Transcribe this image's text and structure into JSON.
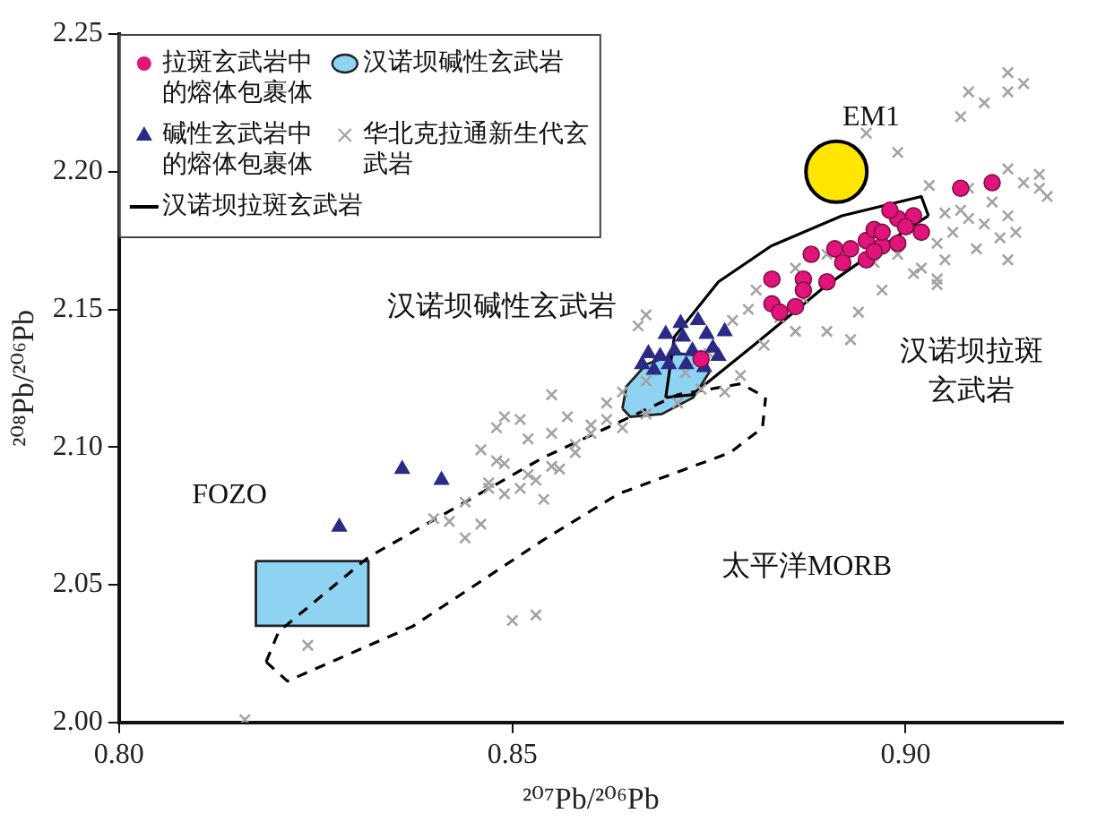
{
  "chart_data": {
    "type": "scatter",
    "xlabel": "²⁰⁷Pb/²⁰⁶Pb",
    "ylabel": "²⁰⁸Pb/²⁰⁶Pb",
    "xlim": [
      0.8,
      0.92
    ],
    "xticks": [
      {
        "value": 0.8,
        "label": "0.80"
      },
      0.85,
      {
        "value": 0.9,
        "label": "0.90"
      }
    ],
    "ylim": [
      2.0,
      2.25
    ],
    "yticks": [
      {
        "value": 2.0,
        "label": "2.00"
      },
      2.05,
      {
        "value": 2.1,
        "label": "2.10"
      },
      2.15,
      {
        "value": 2.2,
        "label": "2.20"
      },
      2.25
    ],
    "grid": false,
    "legend": "top left",
    "series": [
      {
        "name": "拉斑玄武岩中的熔体包裹体",
        "type": "scatter",
        "marker": "circle",
        "color": "#e2147c",
        "x": [
          0.907,
          0.911,
          0.888,
          0.891,
          0.892,
          0.883,
          0.887,
          0.89,
          0.895,
          0.896,
          0.899,
          0.901,
          0.902,
          0.897,
          0.899,
          0.895,
          0.897,
          0.9,
          0.893,
          0.896,
          0.887,
          0.883,
          0.884,
          0.886,
          0.874,
          0.898
        ],
        "values": [
          2.194,
          2.196,
          2.17,
          2.172,
          2.167,
          2.161,
          2.161,
          2.16,
          2.175,
          2.179,
          2.183,
          2.184,
          2.178,
          2.173,
          2.174,
          2.168,
          2.178,
          2.18,
          2.172,
          2.171,
          2.157,
          2.152,
          2.149,
          2.151,
          2.132,
          2.186
        ]
      },
      {
        "name": "汉诺坝碱性玄武岩",
        "type": "area",
        "color": "#8ed4f2",
        "x": [
          0.864,
          0.8645,
          0.867,
          0.871,
          0.8745,
          0.875,
          0.873,
          0.869,
          0.865
        ],
        "values": [
          2.114,
          2.122,
          2.13,
          2.134,
          2.133,
          2.127,
          2.118,
          2.112,
          2.111
        ]
      },
      {
        "name": "碱性玄武岩中的熔体包裹体",
        "type": "scatter",
        "marker": "triangle",
        "color": "#2b2b86",
        "x": [
          0.8714,
          0.8736,
          0.8695,
          0.8717,
          0.8747,
          0.877,
          0.8673,
          0.8688,
          0.8706,
          0.8729,
          0.8755,
          0.8665,
          0.8699,
          0.8721,
          0.8744,
          0.868,
          0.8762,
          0.828,
          0.836,
          0.841
        ],
        "values": [
          2.145,
          2.146,
          2.141,
          2.14,
          2.141,
          2.142,
          2.134,
          2.133,
          2.135,
          2.135,
          2.136,
          2.13,
          2.13,
          2.13,
          2.129,
          2.128,
          2.133,
          2.071,
          2.092,
          2.088
        ]
      },
      {
        "name": "华北克拉通新生代玄武岩",
        "type": "scatter",
        "marker": "cross",
        "color": "#a3a3a3",
        "x": [
          0.816,
          0.824,
          0.851,
          0.852,
          0.848,
          0.847,
          0.844,
          0.84,
          0.842,
          0.844,
          0.846,
          0.85,
          0.853,
          0.913,
          0.913,
          0.908,
          0.91,
          0.907,
          0.895,
          0.899,
          0.913,
          0.915,
          0.917,
          0.918,
          0.908,
          0.903,
          0.905,
          0.908,
          0.91,
          0.913,
          0.914,
          0.912,
          0.906,
          0.904,
          0.913,
          0.909,
          0.905,
          0.904,
          0.902,
          0.89,
          0.894,
          0.897,
          0.901,
          0.886,
          0.882,
          0.879,
          0.877,
          0.871,
          0.867,
          0.864,
          0.86,
          0.858,
          0.855,
          0.853,
          0.851,
          0.849,
          0.847,
          0.849,
          0.854,
          0.857,
          0.862,
          0.864,
          0.867,
          0.866,
          0.878,
          0.88,
          0.881,
          0.886,
          0.89,
          0.893,
          0.904,
          0.855,
          0.849,
          0.848,
          0.855,
          0.86,
          0.867,
          0.858,
          0.862,
          0.872,
          0.874,
          0.875,
          0.884,
          0.887,
          0.896,
          0.899,
          0.907,
          0.911,
          0.917,
          0.915,
          0.856,
          0.852,
          0.846
        ],
        "values": [
          2.001,
          2.028,
          2.11,
          2.103,
          2.095,
          2.085,
          2.08,
          2.074,
          2.073,
          2.067,
          2.072,
          2.037,
          2.039,
          2.236,
          2.229,
          2.229,
          2.225,
          2.22,
          2.214,
          2.207,
          2.201,
          2.196,
          2.194,
          2.191,
          2.194,
          2.195,
          2.185,
          2.183,
          2.181,
          2.184,
          2.178,
          2.176,
          2.178,
          2.174,
          2.168,
          2.172,
          2.168,
          2.159,
          2.165,
          2.142,
          2.149,
          2.157,
          2.163,
          2.142,
          2.137,
          2.126,
          2.12,
          2.116,
          2.112,
          2.107,
          2.105,
          2.098,
          2.093,
          2.088,
          2.085,
          2.094,
          2.087,
          2.083,
          2.081,
          2.111,
          2.116,
          2.12,
          2.124,
          2.144,
          2.146,
          2.15,
          2.157,
          2.165,
          2.17,
          2.139,
          2.161,
          2.119,
          2.111,
          2.107,
          2.105,
          2.108,
          2.148,
          2.101,
          2.11,
          2.127,
          2.121,
          2.134,
          2.147,
          2.154,
          2.167,
          2.17,
          2.186,
          2.189,
          2.199,
          2.232,
          2.092,
          2.09,
          2.099
        ]
      },
      {
        "name": "汉诺坝拉斑玄武岩",
        "type": "line",
        "color": "#000000",
        "x": [
          0.8695,
          0.8706,
          0.8762,
          0.8829,
          0.8919,
          0.902,
          0.9029
        ],
        "values": [
          2.118,
          2.14,
          2.16,
          2.173,
          2.184,
          2.191,
          2.184
        ]
      },
      {
        "type": "line",
        "color": "#000000",
        "x": [
          0.8695,
          0.8729,
          0.8807,
          0.8896,
          0.8986,
          0.9029
        ],
        "values": [
          2.118,
          2.119,
          2.137,
          2.158,
          2.176,
          2.184
        ]
      },
      {
        "type": "line",
        "line_style": "dashed",
        "color": "#000000",
        "x": [
          0.8187,
          0.8214,
          0.8374,
          0.8538,
          0.8635,
          0.8777,
          0.8818,
          0.8822
        ],
        "values": [
          2.022,
          2.015,
          2.035,
          2.066,
          2.083,
          2.098,
          2.107,
          2.118
        ]
      },
      {
        "type": "line",
        "line_style": "dashed",
        "color": "#000000",
        "x": [
          0.8187,
          0.8203,
          0.8317,
          0.8538,
          0.871,
          0.8791,
          0.8822
        ],
        "values": [
          2.022,
          2.033,
          2.06,
          2.096,
          2.119,
          2.123,
          2.118
        ]
      },
      {
        "type": "area",
        "color": "#8ed4f2",
        "x": [
          0.8174,
          0.8317,
          0.8317,
          0.8174
        ],
        "values": [
          2.0586,
          2.0586,
          2.0351,
          2.0351
        ]
      },
      {
        "type": "bubble",
        "color": "#ffe600",
        "x": [
          0.8912
        ],
        "values": [
          2.2
        ],
        "sizes": [
          1
        ]
      }
    ],
    "annotations": [
      "EM1",
      "汉诺坝碱性玄武岩",
      "汉诺坝拉斑玄武岩",
      "FOZO",
      "太平洋MORB"
    ]
  }
}
